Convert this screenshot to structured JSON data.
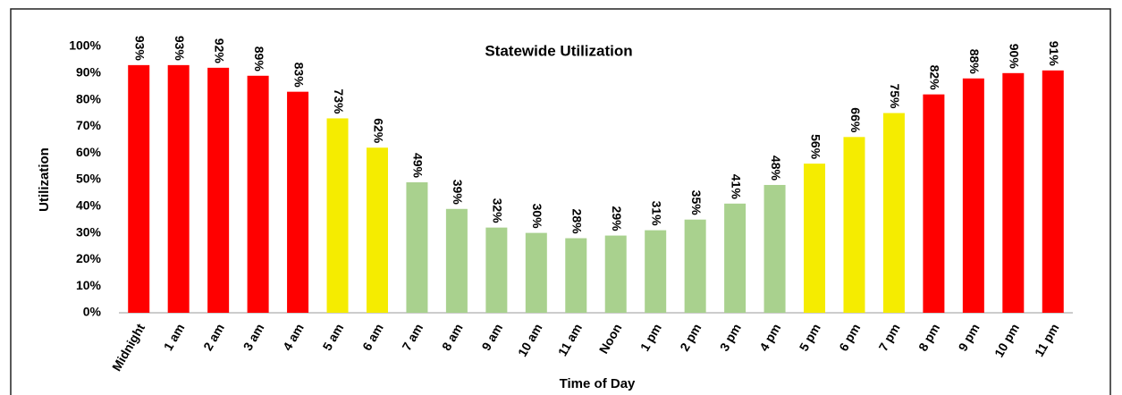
{
  "chart_data": {
    "type": "bar",
    "title": "Statewide Utilization",
    "x_label": "Time of Day",
    "y_label": "Utilization",
    "categories": [
      "Midnight",
      "1 am",
      "2 am",
      "3 am",
      "4 am",
      "5 am",
      "6 am",
      "7 am",
      "8 am",
      "9 am",
      "10 am",
      "11 am",
      "Noon",
      "1 pm",
      "2 pm",
      "3 pm",
      "4 pm",
      "5 pm",
      "6 pm",
      "7 pm",
      "8 pm",
      "9 pm",
      "10 pm",
      "11 pm"
    ],
    "values": [
      93,
      93,
      92,
      89,
      83,
      73,
      62,
      49,
      39,
      32,
      30,
      28,
      29,
      31,
      35,
      41,
      48,
      56,
      66,
      75,
      82,
      88,
      90,
      91
    ],
    "value_labels": [
      "93%",
      "93%",
      "92%",
      "89%",
      "83%",
      "73%",
      "62%",
      "49%",
      "39%",
      "32%",
      "30%",
      "28%",
      "29%",
      "31%",
      "35%",
      "41%",
      "48%",
      "56%",
      "66%",
      "75%",
      "82%",
      "88%",
      "90%",
      "91%"
    ],
    "colors": [
      "#ff0000",
      "#ff0000",
      "#ff0000",
      "#ff0000",
      "#ff0000",
      "#f5ec00",
      "#f5ec00",
      "#a9d18e",
      "#a9d18e",
      "#a9d18e",
      "#a9d18e",
      "#a9d18e",
      "#a9d18e",
      "#a9d18e",
      "#a9d18e",
      "#a9d18e",
      "#a9d18e",
      "#f5ec00",
      "#f5ec00",
      "#f5ec00",
      "#ff0000",
      "#ff0000",
      "#ff0000",
      "#ff0000"
    ],
    "ylim": [
      0,
      100
    ],
    "yticks": [
      {
        "value": 0,
        "label": "0%"
      },
      {
        "value": 10,
        "label": "10%"
      },
      {
        "value": 20,
        "label": "20%"
      },
      {
        "value": 30,
        "label": "30%"
      },
      {
        "value": 40,
        "label": "40%"
      },
      {
        "value": 50,
        "label": "50%"
      },
      {
        "value": 60,
        "label": "60%"
      },
      {
        "value": 70,
        "label": "70%"
      },
      {
        "value": 80,
        "label": "80%"
      },
      {
        "value": 90,
        "label": "90%"
      },
      {
        "value": 100,
        "label": "100%"
      }
    ],
    "grid": false
  }
}
